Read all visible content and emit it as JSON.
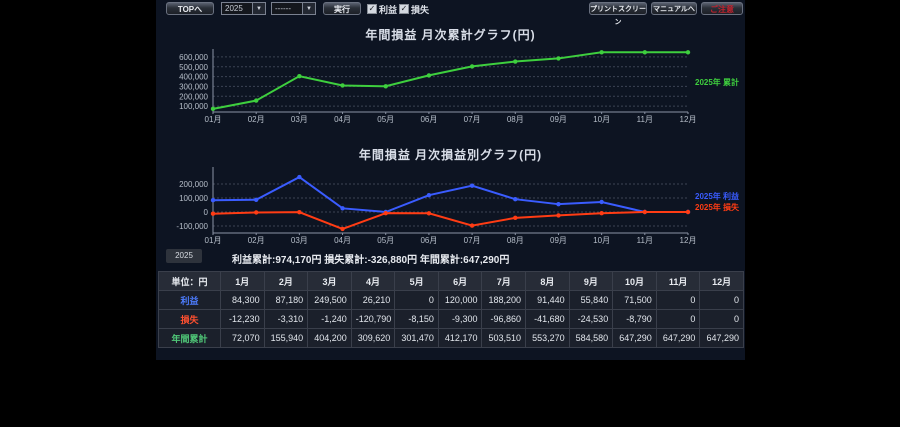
{
  "toolbar": {
    "top_button": "TOPへ",
    "year_select": "2025",
    "period_select": "------",
    "run_button": "実行",
    "profit_checkbox_label": "利益",
    "loss_checkbox_label": "損失",
    "print_screen_button": "プリントスクリーン",
    "manual_button": "マニュアルへ",
    "caution_button": "ご注意"
  },
  "icons": {
    "chevron_down": "▼",
    "check": "✓"
  },
  "chart_data": [
    {
      "type": "line",
      "title": "年間損益 月次累計グラフ(円)",
      "categories": [
        "01月",
        "02月",
        "03月",
        "04月",
        "05月",
        "06月",
        "07月",
        "08月",
        "09月",
        "10月",
        "11月",
        "12月"
      ],
      "series": [
        {
          "name": "2025年 累計",
          "color": "#3ecf3e",
          "values": [
            72070,
            155940,
            404200,
            309620,
            301470,
            412170,
            503510,
            553270,
            584580,
            647290,
            647290,
            647290
          ]
        }
      ],
      "yticks": [
        100000,
        200000,
        300000,
        400000,
        500000,
        600000
      ],
      "ylim": [
        40000,
        650000
      ],
      "grid": true,
      "legend_position": "right"
    },
    {
      "type": "line",
      "title": "年間損益 月次損益別グラフ(円)",
      "categories": [
        "01月",
        "02月",
        "03月",
        "04月",
        "05月",
        "06月",
        "07月",
        "08月",
        "09月",
        "10月",
        "11月",
        "12月"
      ],
      "series": [
        {
          "name": "2025年 利益",
          "color": "#3a5cff",
          "values": [
            84300,
            87180,
            249500,
            26210,
            0,
            120000,
            188200,
            91440,
            55840,
            71500,
            0,
            0
          ]
        },
        {
          "name": "2025年 損失",
          "color": "#ff3c14",
          "values": [
            -12230,
            -3310,
            -1240,
            -120790,
            -8150,
            -9300,
            -96860,
            -41680,
            -24530,
            -8790,
            0,
            0
          ]
        }
      ],
      "yticks": [
        -100000,
        0,
        100000,
        200000
      ],
      "ylim": [
        -150000,
        300000
      ],
      "grid": true,
      "legend_position": "right"
    }
  ],
  "summary": {
    "year_badge": "2025",
    "text": "利益累計:974,170円 損失累計:-326,880円 年間累計:647,290円"
  },
  "table": {
    "unit_header": "単位：円",
    "columns": [
      "1月",
      "2月",
      "3月",
      "4月",
      "5月",
      "6月",
      "7月",
      "8月",
      "9月",
      "10月",
      "11月",
      "12月"
    ],
    "rows": [
      {
        "label": "利益",
        "color": "#4d7dff",
        "values": [
          "84,300",
          "87,180",
          "249,500",
          "26,210",
          "0",
          "120,000",
          "188,200",
          "91,440",
          "55,840",
          "71,500",
          "0",
          "0"
        ]
      },
      {
        "label": "損失",
        "color": "#ff5030",
        "values": [
          "-12,230",
          "-3,310",
          "-1,240",
          "-120,790",
          "-8,150",
          "-9,300",
          "-96,860",
          "-41,680",
          "-24,530",
          "-8,790",
          "0",
          "0"
        ]
      },
      {
        "label": "年間累計",
        "color": "#50c878",
        "values": [
          "72,070",
          "155,940",
          "404,200",
          "309,620",
          "301,470",
          "412,170",
          "503,510",
          "553,270",
          "584,580",
          "647,290",
          "647,290",
          "647,290"
        ]
      }
    ]
  }
}
